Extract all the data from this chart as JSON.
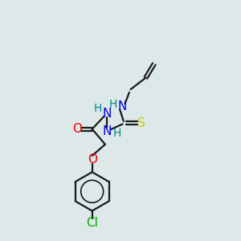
{
  "bg_color": "#dde8e8",
  "bond_color": "#1a1a1a",
  "N_color": "#0000ee",
  "O_color": "#ee0000",
  "S_color": "#cccc00",
  "Cl_color": "#00aa00",
  "H_color": "#008888",
  "line_width": 1.6,
  "font_size": 11,
  "fig_size": [
    3.0,
    3.0
  ],
  "dpi": 100,
  "xlim": [
    0,
    10
  ],
  "ylim": [
    0,
    10
  ]
}
